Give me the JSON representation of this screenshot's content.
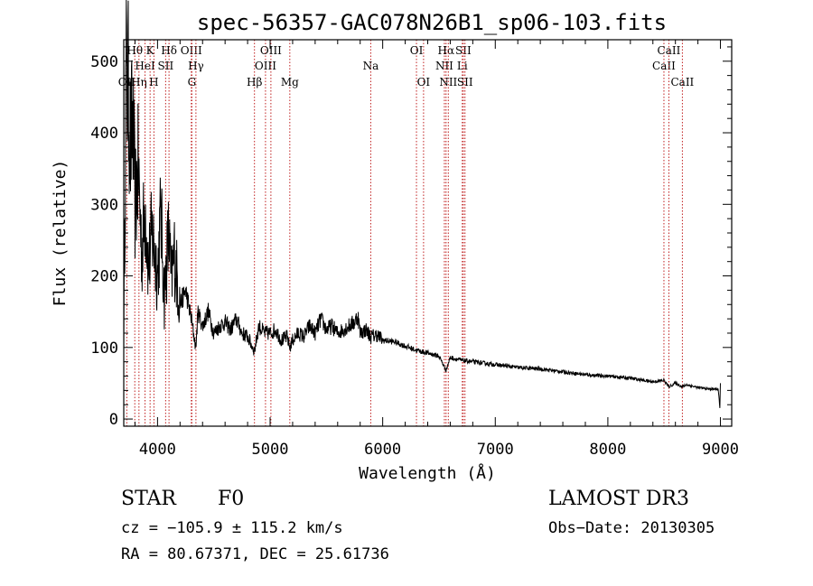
{
  "chart_data": {
    "type": "line",
    "title": "spec-56357-GAC078N26B1_sp06-103.fits",
    "xlabel": "Wavelength (Å)",
    "ylabel": "Flux (relative)",
    "xlim": [
      3700,
      9100
    ],
    "ylim": [
      -10,
      530
    ],
    "xticks": [
      4000,
      5000,
      6000,
      7000,
      8000,
      9000
    ],
    "yticks": [
      0,
      100,
      200,
      300,
      400,
      500
    ],
    "series": [
      {
        "name": "flux",
        "x": [
          3700,
          3720,
          3740,
          3760,
          3780,
          3800,
          3830,
          3860,
          3890,
          3920,
          3950,
          3970,
          4000,
          4030,
          4060,
          4090,
          4102,
          4120,
          4150,
          4200,
          4250,
          4300,
          4340,
          4360,
          4400,
          4450,
          4500,
          4550,
          4600,
          4650,
          4700,
          4750,
          4800,
          4861,
          4900,
          4950,
          5000,
          5050,
          5100,
          5150,
          5175,
          5200,
          5250,
          5300,
          5350,
          5400,
          5450,
          5500,
          5550,
          5600,
          5650,
          5700,
          5750,
          5780,
          5800,
          5850,
          5895,
          5950,
          6000,
          6100,
          6200,
          6300,
          6400,
          6500,
          6563,
          6600,
          6700,
          6800,
          6900,
          7000,
          7200,
          7400,
          7600,
          7800,
          8000,
          8200,
          8400,
          8500,
          8542,
          8600,
          8662,
          8700,
          8800,
          8900,
          8980,
          8995,
          9000
        ],
        "y": [
          120,
          480,
          460,
          380,
          420,
          300,
          350,
          230,
          300,
          210,
          260,
          240,
          200,
          290,
          170,
          240,
          260,
          190,
          230,
          160,
          180,
          140,
          100,
          150,
          130,
          150,
          120,
          130,
          135,
          125,
          140,
          120,
          115,
          95,
          130,
          120,
          120,
          125,
          110,
          115,
          100,
          110,
          120,
          115,
          130,
          120,
          140,
          125,
          130,
          120,
          125,
          130,
          135,
          145,
          120,
          125,
          115,
          118,
          110,
          108,
          102,
          96,
          92,
          88,
          68,
          86,
          82,
          80,
          78,
          76,
          72,
          70,
          66,
          62,
          60,
          57,
          52,
          54,
          45,
          50,
          45,
          48,
          44,
          42,
          42,
          15,
          50
        ]
      }
    ],
    "lines": [
      {
        "label": "OII",
        "x": 3727,
        "row": 2
      },
      {
        "label": "Hθ",
        "x": 3798,
        "row": 0
      },
      {
        "label": "Hη",
        "x": 3835,
        "row": 2
      },
      {
        "label": "HeI",
        "x": 3889,
        "row": 1
      },
      {
        "label": "K",
        "x": 3934,
        "row": 0
      },
      {
        "label": "H",
        "x": 3968,
        "row": 2
      },
      {
        "label": "SII",
        "x": 4072,
        "row": 1
      },
      {
        "label": "Hδ",
        "x": 4102,
        "row": 0
      },
      {
        "label": "OIII",
        "x": 4300,
        "row": 0
      },
      {
        "label": "G",
        "x": 4305,
        "row": 2
      },
      {
        "label": "Hγ",
        "x": 4341,
        "row": 1
      },
      {
        "label": "Hβ",
        "x": 4861,
        "row": 2
      },
      {
        "label": "OIII",
        "x": 4959,
        "row": 1
      },
      {
        "label": "OIII",
        "x": 5007,
        "row": 0
      },
      {
        "label": "Mg",
        "x": 5175,
        "row": 2
      },
      {
        "label": "Na",
        "x": 5894,
        "row": 1
      },
      {
        "label": "OI",
        "x": 6300,
        "row": 0
      },
      {
        "label": "OI",
        "x": 6363,
        "row": 2
      },
      {
        "label": "NII",
        "x": 6548,
        "row": 1
      },
      {
        "label": "Hα",
        "x": 6563,
        "row": 0
      },
      {
        "label": "NII",
        "x": 6583,
        "row": 2
      },
      {
        "label": "Li",
        "x": 6707,
        "row": 1
      },
      {
        "label": "SII",
        "x": 6716,
        "row": 0
      },
      {
        "label": "SII",
        "x": 6731,
        "row": 2
      },
      {
        "label": "CaII",
        "x": 8498,
        "row": 1
      },
      {
        "label": "CaII",
        "x": 8542,
        "row": 0
      },
      {
        "label": "CaII",
        "x": 8662,
        "row": 2
      }
    ],
    "line_color": "#c02020"
  },
  "info": {
    "object_class": "STAR",
    "subclass": "F0",
    "survey": "LAMOST DR3",
    "redshift": "cz = −105.9 ± 115.2 km/s",
    "obs_date": "Obs−Date: 20130305",
    "coords": "RA =  80.67371, DEC =  25.61736"
  }
}
